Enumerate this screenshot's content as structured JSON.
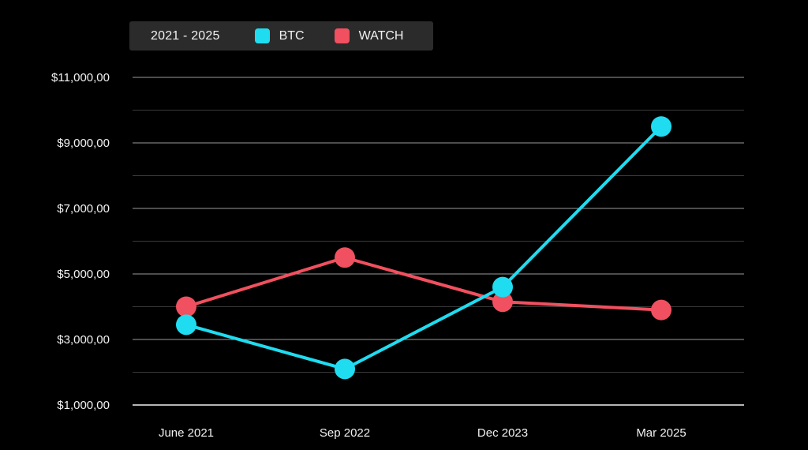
{
  "legend": {
    "range_label": "2021 - 2025"
  },
  "chart_data": {
    "type": "line",
    "categories": [
      "June 2021",
      "Sep 2022",
      "Dec 2023",
      "Mar 2025"
    ],
    "series": [
      {
        "name": "BTC",
        "color": "#1fdcf0",
        "values": [
          3450,
          2100,
          4600,
          9500
        ]
      },
      {
        "name": "WATCH",
        "color": "#f0505f",
        "values": [
          4000,
          5500,
          4150,
          3900
        ]
      }
    ],
    "yticks": [
      1000,
      3000,
      5000,
      7000,
      9000,
      11000
    ],
    "ytick_labels": [
      "$1,000,00",
      "$3,000,00",
      "$5,000,00",
      "$7,000,00",
      "$9,000,00",
      "$11,000,00"
    ],
    "ylim": [
      1000,
      11000
    ],
    "grid": true,
    "legend_position": "top-left",
    "title": "",
    "xlabel": "",
    "ylabel": ""
  }
}
